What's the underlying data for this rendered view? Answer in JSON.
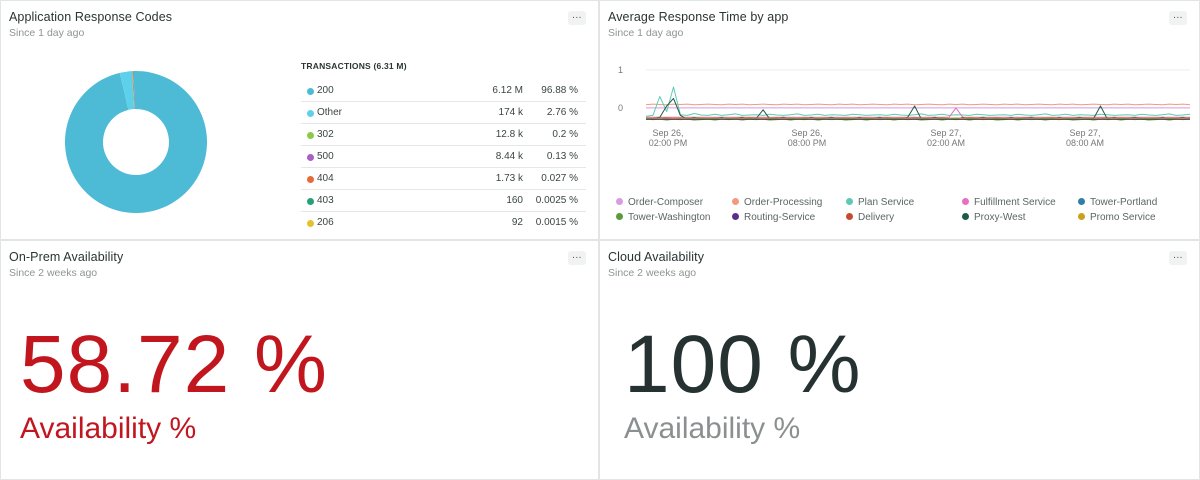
{
  "panels": {
    "response_codes": {
      "title": "Application Response Codes",
      "subtitle": "Since 1 day ago",
      "menu": "...",
      "table_header": "TRANSACTIONS (6.31 M)",
      "rows": [
        {
          "label": "200",
          "value": "6.12 M",
          "pct": "96.88 %",
          "color": "#4dbbd5"
        },
        {
          "label": "Other",
          "value": "174 k",
          "pct": "2.76 %",
          "color": "#5fd0ec"
        },
        {
          "label": "302",
          "value": "12.8 k",
          "pct": "0.2 %",
          "color": "#8cc94a"
        },
        {
          "label": "500",
          "value": "8.44 k",
          "pct": "0.13 %",
          "color": "#a95fc7"
        },
        {
          "label": "404",
          "value": "1.73 k",
          "pct": "0.027 %",
          "color": "#e86a3a"
        },
        {
          "label": "403",
          "value": "160",
          "pct": "0.0025 %",
          "color": "#27a07a"
        },
        {
          "label": "206",
          "value": "92",
          "pct": "0.0015 %",
          "color": "#e8c12a"
        }
      ]
    },
    "response_time": {
      "title": "Average Response Time by app",
      "subtitle": "Since 1 day ago",
      "menu": "...",
      "legend": [
        {
          "label": "Order-Composer",
          "color": "#d79be0"
        },
        {
          "label": "Order-Processing",
          "color": "#f29a80"
        },
        {
          "label": "Plan Service",
          "color": "#5fc9b6"
        },
        {
          "label": "Fulfillment Service",
          "color": "#e86ec2"
        },
        {
          "label": "Tower-Portland",
          "color": "#2e7fa6"
        },
        {
          "label": "Tower-Washington",
          "color": "#5a9a3a"
        },
        {
          "label": "Routing-Service",
          "color": "#5a2f8c"
        },
        {
          "label": "Delivery",
          "color": "#c64a30"
        },
        {
          "label": "Proxy-West",
          "color": "#1f5a48"
        },
        {
          "label": "Promo Service",
          "color": "#c9a020"
        }
      ]
    },
    "onprem": {
      "title": "On-Prem Availability",
      "subtitle": "Since 2 weeks ago",
      "menu": "...",
      "value": "58.72 %",
      "label": "Availability %",
      "color": "#c2161f"
    },
    "cloud": {
      "title": "Cloud Availability",
      "subtitle": "Since 2 weeks ago",
      "menu": "...",
      "value": "100 %",
      "label": "Availability %",
      "value_color": "#263232",
      "label_color": "#8a9090"
    }
  },
  "chart_data": [
    {
      "type": "pie",
      "title": "Application Response Codes",
      "categories": [
        "200",
        "Other",
        "302",
        "500",
        "404",
        "403",
        "206"
      ],
      "values": [
        96.88,
        2.76,
        0.2,
        0.13,
        0.027,
        0.0025,
        0.0015
      ]
    },
    {
      "type": "line",
      "title": "Average Response Time by app",
      "x_tick_labels": [
        "Sep 26,\n02:00 PM",
        "Sep 26,\n08:00 PM",
        "Sep 27,\n02:00 AM",
        "Sep 27,\n08:00 AM"
      ],
      "y_tick_labels": [
        "1",
        "0"
      ],
      "ylim": [
        -0.4,
        1
      ],
      "series": [
        {
          "name": "Order-Composer",
          "values": [
            0.0,
            0.0,
            0.0,
            0.0,
            0.0,
            0.0,
            0.0,
            0.0,
            0.0,
            0.0,
            0.0,
            0.0,
            0.0,
            0.0,
            0.0,
            0.0,
            0.0,
            0.0,
            0.0,
            0.0,
            0.0,
            0.0,
            0.0,
            0.0,
            0.0,
            0.0,
            0.0,
            0.0,
            0.0,
            0.0,
            0.0,
            0.0,
            0.0,
            0.0,
            0.0,
            0.0,
            0.0,
            0.0,
            0.0,
            0.0,
            0.0,
            0.0,
            0.0,
            0.0,
            0.0,
            0.0,
            0.0,
            0.0,
            0.0,
            0.0,
            0.0,
            0.0,
            0.0,
            0.0,
            0.0,
            0.0,
            0.0,
            0.0,
            0.0,
            0.0,
            0.0,
            0.0,
            0.0,
            0.0,
            0.0,
            0.0,
            0.0,
            0.0,
            0.0,
            0.0,
            0.0,
            0.0,
            0.0,
            0.0,
            0.0,
            0.0,
            0.0,
            0.0,
            0.0,
            0.0
          ]
        },
        {
          "name": "Order-Processing",
          "values": [
            0.08,
            0.1,
            0.09,
            0.08,
            0.1,
            0.09,
            0.1,
            0.08,
            0.09,
            0.1,
            0.09,
            0.08,
            0.1,
            0.09,
            0.1,
            0.08,
            0.09,
            0.1,
            0.09,
            0.08,
            0.1,
            0.09,
            0.1,
            0.08,
            0.09,
            0.1,
            0.09,
            0.08,
            0.1,
            0.09,
            0.1,
            0.08,
            0.09,
            0.1,
            0.09,
            0.08,
            0.1,
            0.09,
            0.1,
            0.08,
            0.09,
            0.1,
            0.09,
            0.08,
            0.1,
            0.09,
            0.1,
            0.08,
            0.09,
            0.1,
            0.09,
            0.08,
            0.1,
            0.09,
            0.1,
            0.08,
            0.09,
            0.1,
            0.09,
            0.08,
            0.1,
            0.09,
            0.1,
            0.08,
            0.09,
            0.1,
            0.09,
            0.08,
            0.1,
            0.09,
            0.1,
            0.08,
            0.09,
            0.1,
            0.09,
            0.08,
            0.1,
            0.09,
            0.1,
            0.08
          ]
        },
        {
          "name": "Plan Service",
          "values": [
            -0.22,
            -0.2,
            0.3,
            -0.1,
            0.55,
            -0.18,
            -0.2,
            -0.15,
            -0.19,
            -0.2,
            -0.17,
            -0.2,
            -0.18,
            -0.16,
            -0.2,
            -0.19,
            -0.18,
            -0.2,
            -0.17,
            -0.19,
            -0.2,
            -0.18,
            -0.16,
            -0.2,
            -0.19,
            -0.17,
            -0.2,
            -0.18,
            -0.19,
            -0.2,
            -0.17,
            -0.18,
            -0.2,
            -0.19,
            -0.18,
            -0.2,
            -0.17,
            -0.19,
            -0.2,
            -0.18,
            -0.16,
            -0.2,
            -0.19,
            -0.17,
            -0.2,
            -0.18,
            -0.19,
            -0.2,
            -0.17,
            -0.18,
            -0.2,
            -0.19,
            -0.18,
            -0.2,
            -0.17,
            -0.19,
            -0.2,
            -0.18,
            -0.16,
            -0.2,
            -0.19,
            -0.17,
            -0.2,
            -0.18,
            -0.19,
            -0.2,
            -0.17,
            -0.18,
            -0.2,
            -0.19,
            -0.18,
            -0.2,
            -0.17,
            -0.19,
            -0.2,
            -0.18,
            -0.16,
            -0.2,
            -0.19,
            -0.17
          ]
        },
        {
          "name": "Fulfillment Service",
          "values": [
            -0.25,
            -0.25,
            -0.25,
            -0.25,
            -0.25,
            -0.25,
            -0.25,
            -0.25,
            -0.25,
            -0.25,
            -0.25,
            -0.25,
            -0.25,
            -0.25,
            -0.25,
            -0.25,
            -0.25,
            -0.25,
            -0.25,
            -0.25,
            -0.25,
            -0.25,
            -0.25,
            -0.25,
            -0.25,
            -0.25,
            -0.25,
            -0.25,
            -0.25,
            -0.25,
            -0.25,
            -0.25,
            -0.25,
            -0.25,
            -0.25,
            -0.25,
            -0.25,
            -0.25,
            -0.25,
            -0.25,
            -0.25,
            -0.25,
            -0.25,
            -0.25,
            -0.25,
            0.0,
            -0.25,
            -0.25,
            -0.25,
            -0.25,
            -0.25,
            -0.25,
            -0.25,
            -0.25,
            -0.25,
            -0.25,
            -0.25,
            -0.25,
            -0.25,
            -0.25,
            -0.25,
            -0.25,
            -0.25,
            -0.25,
            -0.25,
            -0.25,
            -0.25,
            -0.25,
            -0.25,
            -0.25,
            -0.25,
            -0.25,
            -0.25,
            -0.25,
            -0.25,
            -0.25,
            -0.25,
            -0.25,
            -0.25,
            -0.25
          ]
        },
        {
          "name": "Tower-Portland",
          "values": [
            -0.28,
            -0.3,
            -0.27,
            -0.29,
            -0.3,
            -0.28,
            -0.27,
            -0.3,
            -0.29,
            -0.28,
            -0.3,
            -0.27,
            -0.29,
            -0.28,
            -0.3,
            -0.27,
            -0.29,
            -0.3,
            -0.28,
            -0.27,
            -0.3,
            -0.29,
            -0.28,
            -0.3,
            -0.27,
            -0.29,
            -0.28,
            -0.3,
            -0.27,
            -0.29,
            -0.3,
            -0.28,
            -0.27,
            -0.3,
            -0.29,
            -0.28,
            -0.3,
            -0.27,
            -0.29,
            -0.28,
            -0.3,
            -0.27,
            -0.29,
            -0.3,
            -0.28,
            -0.27,
            -0.3,
            -0.29,
            -0.28,
            -0.3,
            -0.27,
            -0.29,
            -0.28,
            -0.3,
            -0.27,
            -0.29,
            -0.3,
            -0.28,
            -0.27,
            -0.3,
            -0.29,
            -0.28,
            -0.3,
            -0.27,
            -0.29,
            -0.28,
            -0.3,
            -0.27,
            -0.29,
            -0.3,
            -0.28,
            -0.27,
            -0.3,
            -0.29,
            -0.28,
            -0.3,
            -0.27,
            -0.29,
            -0.28,
            -0.3
          ]
        },
        {
          "name": "Tower-Washington",
          "values": [
            -0.3,
            -0.31,
            -0.3,
            -0.32,
            -0.3,
            -0.31,
            -0.3,
            -0.32,
            -0.31,
            -0.3,
            -0.32,
            -0.3,
            -0.31,
            -0.3,
            -0.32,
            -0.3,
            -0.31,
            -0.3,
            -0.32,
            -0.31,
            -0.3,
            -0.32,
            -0.3,
            -0.31,
            -0.3,
            -0.32,
            -0.3,
            -0.31,
            -0.3,
            -0.32,
            -0.31,
            -0.3,
            -0.32,
            -0.3,
            -0.31,
            -0.3,
            -0.32,
            -0.3,
            -0.31,
            -0.3,
            -0.32,
            -0.31,
            -0.3,
            -0.32,
            -0.3,
            -0.31,
            -0.3,
            -0.32,
            -0.3,
            -0.31,
            -0.3,
            -0.32,
            -0.31,
            -0.3,
            -0.32,
            -0.3,
            -0.31,
            -0.3,
            -0.32,
            -0.3,
            -0.31,
            -0.3,
            -0.32,
            -0.31,
            -0.3,
            -0.32,
            -0.3,
            -0.31,
            -0.3,
            -0.32,
            -0.3,
            -0.31,
            -0.3,
            -0.32,
            -0.31,
            -0.3,
            -0.32,
            -0.3,
            -0.31,
            -0.3
          ]
        },
        {
          "name": "Routing-Service",
          "values": [
            -0.3,
            -0.3,
            -0.3,
            -0.3,
            -0.3,
            -0.3,
            -0.3,
            -0.3,
            -0.3,
            -0.3,
            -0.3,
            -0.3,
            -0.3,
            -0.3,
            -0.3,
            -0.3,
            -0.3,
            -0.3,
            -0.3,
            -0.3,
            -0.3,
            -0.3,
            -0.3,
            -0.3,
            -0.3,
            -0.3,
            -0.3,
            -0.3,
            -0.3,
            -0.3,
            -0.3,
            -0.3,
            -0.3,
            -0.3,
            -0.3,
            -0.3,
            -0.3,
            -0.3,
            -0.3,
            -0.3,
            -0.3,
            -0.3,
            -0.3,
            -0.3,
            -0.3,
            -0.3,
            -0.3,
            -0.3,
            -0.3,
            -0.3,
            -0.3,
            -0.3,
            -0.3,
            -0.3,
            -0.3,
            -0.3,
            -0.3,
            -0.3,
            -0.3,
            -0.3,
            -0.3,
            -0.3,
            -0.3,
            -0.3,
            -0.3,
            -0.3,
            -0.3,
            -0.3,
            -0.3,
            -0.3,
            -0.3,
            -0.3,
            -0.3,
            -0.3,
            -0.3,
            -0.3,
            -0.3,
            -0.3,
            -0.3,
            -0.3
          ]
        },
        {
          "name": "Delivery",
          "values": [
            -0.27,
            -0.28,
            -0.27,
            -0.26,
            -0.28,
            -0.27,
            -0.28,
            -0.26,
            -0.27,
            -0.28,
            -0.27,
            -0.26,
            -0.28,
            -0.27,
            -0.28,
            -0.26,
            -0.27,
            -0.28,
            -0.27,
            -0.26,
            -0.28,
            -0.27,
            -0.28,
            -0.26,
            -0.27,
            -0.28,
            -0.27,
            -0.26,
            -0.28,
            -0.27,
            -0.28,
            -0.26,
            -0.27,
            -0.28,
            -0.27,
            -0.26,
            -0.28,
            -0.27,
            -0.28,
            -0.26,
            -0.27,
            -0.28,
            -0.27,
            -0.26,
            -0.28,
            -0.27,
            -0.28,
            -0.26,
            -0.27,
            -0.28,
            -0.27,
            -0.26,
            -0.28,
            -0.27,
            -0.28,
            -0.26,
            -0.27,
            -0.28,
            -0.27,
            -0.26,
            -0.28,
            -0.27,
            -0.28,
            -0.26,
            -0.27,
            -0.28,
            -0.27,
            -0.26,
            -0.28,
            -0.27,
            -0.28,
            -0.26,
            -0.27,
            -0.28,
            -0.27,
            -0.26,
            -0.28,
            -0.27,
            -0.28,
            -0.26
          ]
        },
        {
          "name": "Proxy-West",
          "values": [
            -0.3,
            -0.28,
            -0.25,
            0.05,
            0.25,
            -0.2,
            -0.3,
            -0.25,
            -0.3,
            -0.28,
            -0.3,
            -0.25,
            -0.3,
            -0.28,
            -0.25,
            -0.3,
            -0.28,
            -0.05,
            -0.3,
            -0.28,
            -0.25,
            -0.3,
            -0.28,
            -0.3,
            -0.25,
            -0.3,
            -0.28,
            -0.25,
            -0.3,
            -0.28,
            -0.3,
            -0.25,
            -0.3,
            -0.28,
            -0.25,
            -0.3,
            -0.28,
            -0.3,
            -0.25,
            0.05,
            -0.3,
            -0.28,
            -0.25,
            -0.3,
            -0.28,
            -0.3,
            -0.25,
            -0.3,
            -0.28,
            -0.25,
            -0.3,
            -0.28,
            -0.3,
            -0.25,
            -0.3,
            -0.28,
            -0.25,
            -0.3,
            -0.28,
            -0.3,
            -0.25,
            -0.3,
            -0.28,
            -0.25,
            -0.3,
            -0.28,
            0.05,
            -0.3,
            -0.25,
            -0.3,
            -0.28,
            -0.25,
            -0.3,
            -0.28,
            -0.3,
            -0.25,
            -0.3,
            -0.28,
            -0.25,
            -0.3
          ]
        },
        {
          "name": "Promo Service",
          "values": [
            -0.27,
            -0.27,
            -0.27,
            -0.27,
            -0.27,
            -0.27,
            -0.27,
            -0.27,
            -0.27,
            -0.27,
            -0.27,
            -0.27,
            -0.27,
            -0.27,
            -0.27,
            -0.27,
            -0.27,
            -0.27,
            -0.27,
            -0.27,
            -0.27,
            -0.27,
            -0.27,
            -0.27,
            -0.27,
            -0.27,
            -0.27,
            -0.27,
            -0.27,
            -0.27,
            -0.27,
            -0.27,
            -0.27,
            -0.27,
            -0.27,
            -0.27,
            -0.27,
            -0.27,
            -0.27,
            -0.27,
            -0.27,
            -0.27,
            -0.27,
            -0.27,
            -0.27,
            -0.27,
            -0.27,
            -0.27,
            -0.27,
            -0.27,
            -0.27,
            -0.27,
            -0.27,
            -0.27,
            -0.27,
            -0.27,
            -0.27,
            -0.27,
            -0.27,
            -0.27,
            -0.27,
            -0.27,
            -0.27,
            -0.27,
            -0.27,
            -0.27,
            -0.27,
            -0.27,
            -0.27,
            -0.27,
            -0.27,
            -0.27,
            -0.27,
            -0.27,
            -0.27,
            -0.27,
            -0.27,
            -0.27,
            -0.27,
            -0.27
          ]
        }
      ]
    }
  ]
}
